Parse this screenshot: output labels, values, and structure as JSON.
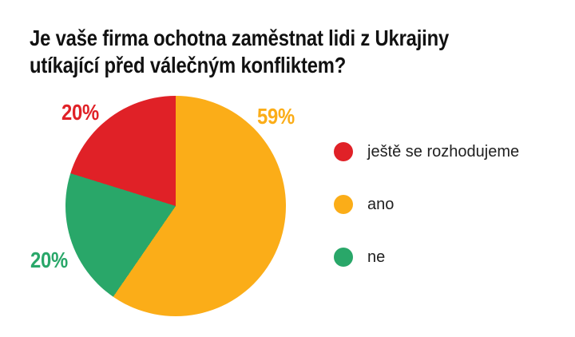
{
  "page": {
    "background": "#ffffff"
  },
  "title": {
    "text": "Je vaše firma ochotna zaměstnat lidi z Ukrajiny utíkající před válečným konfliktem?",
    "lines": [
      "Je vaše firma ochotna zaměstnat lidi z Ukrajiny",
      "utíkající před válečným konfliktem?"
    ],
    "color": "#111111"
  },
  "chart_data": {
    "type": "pie",
    "title": "Je vaše firma ochotna zaměstnat lidi z Ukrajiny utíkající před válečným konfliktem?",
    "unit": "%",
    "start_angle_deg": 0,
    "direction": "clockwise",
    "legend_position": "right",
    "slices": [
      {
        "label": "ano",
        "value": 59,
        "display": "59%",
        "color": "#FBAD18"
      },
      {
        "label": "ne",
        "value": 20,
        "display": "20%",
        "color": "#29A769"
      },
      {
        "label": "ještě se rozhodujeme",
        "value": 20,
        "display": "20%",
        "color": "#E02127"
      }
    ]
  },
  "legend": {
    "items": [
      {
        "label": "ještě se rozhodujeme",
        "color": "#E02127"
      },
      {
        "label": "ano",
        "color": "#FBAD18"
      },
      {
        "label": "ne",
        "color": "#29A769"
      }
    ]
  }
}
